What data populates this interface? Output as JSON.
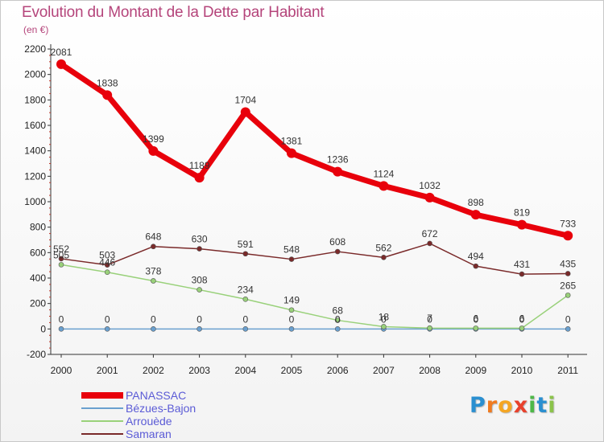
{
  "header": {
    "title": "Evolution du Montant de la Dette par Habitant",
    "subtitle": "(en €)"
  },
  "logo": {
    "text": "Proxiti"
  },
  "chart_data": {
    "type": "line",
    "categories": [
      "2000",
      "2001",
      "2002",
      "2003",
      "2004",
      "2005",
      "2006",
      "2007",
      "2008",
      "2009",
      "2010",
      "2011"
    ],
    "ylim": [
      -200,
      2200
    ],
    "yticks": [
      -200,
      0,
      200,
      400,
      600,
      800,
      1000,
      1200,
      1400,
      1600,
      1800,
      2000,
      2200
    ],
    "grid": false,
    "legend_position": "bottom-left",
    "series": [
      {
        "name": "PANASSAC",
        "color": "#e8000b",
        "width": 7,
        "marker": 6,
        "values": [
          2081,
          1838,
          1399,
          1189,
          1704,
          1381,
          1236,
          1124,
          1032,
          898,
          819,
          733
        ]
      },
      {
        "name": "Bézues-Bajon",
        "color": "#6aa0cf",
        "width": 1.5,
        "marker": 3,
        "values": [
          0,
          0,
          0,
          0,
          0,
          0,
          0,
          0,
          0,
          0,
          0,
          0
        ]
      },
      {
        "name": "Arrouède",
        "color": "#99d17a",
        "width": 1.5,
        "marker": 3,
        "values": [
          505,
          446,
          378,
          308,
          234,
          149,
          68,
          18,
          7,
          6,
          6,
          265
        ]
      },
      {
        "name": "Samaran",
        "color": "#7a2a2a",
        "width": 1.5,
        "marker": 3,
        "values": [
          552,
          503,
          648,
          630,
          591,
          548,
          608,
          562,
          672,
          494,
          431,
          435
        ]
      }
    ]
  }
}
